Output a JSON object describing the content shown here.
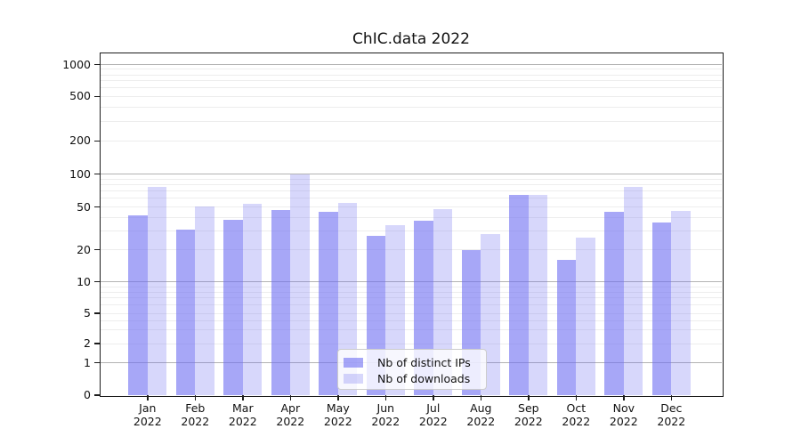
{
  "chart_data": {
    "type": "bar",
    "title": "ChIC.data 2022",
    "categories": [
      "Jan",
      "Feb",
      "Mar",
      "Apr",
      "May",
      "Jun",
      "Jul",
      "Aug",
      "Sep",
      "Oct",
      "Nov",
      "Dec"
    ],
    "category_year": "2022",
    "series": [
      {
        "name": "Nb of distinct IPs",
        "color": "rgba(108,108,242,0.6)",
        "values": [
          42,
          31,
          38,
          47,
          45,
          27,
          37,
          20,
          65,
          16,
          45,
          36
        ]
      },
      {
        "name": "Nb of downloads",
        "color": "rgba(108,108,242,0.27)",
        "values": [
          76,
          51,
          54,
          100,
          55,
          34,
          48,
          28,
          65,
          26,
          77,
          46
        ]
      }
    ],
    "yscale": "asinh-like-log",
    "ytick_labels": [
      0,
      1,
      2,
      5,
      10,
      20,
      50,
      100,
      200,
      500,
      1000
    ],
    "grid": {
      "major_values": [
        1,
        10,
        100,
        1000
      ],
      "minor_values": [
        2,
        3,
        4,
        5,
        6,
        7,
        8,
        9,
        20,
        30,
        40,
        50,
        60,
        70,
        80,
        90,
        200,
        300,
        400,
        500,
        600,
        700,
        800,
        900
      ],
      "major_color": "#b3b3b3",
      "minor_color": "#ededed"
    },
    "legend": {
      "position": "inside-bottom-center"
    },
    "bar_color_hex": "#6c6cf2",
    "background": "#ffffff"
  }
}
